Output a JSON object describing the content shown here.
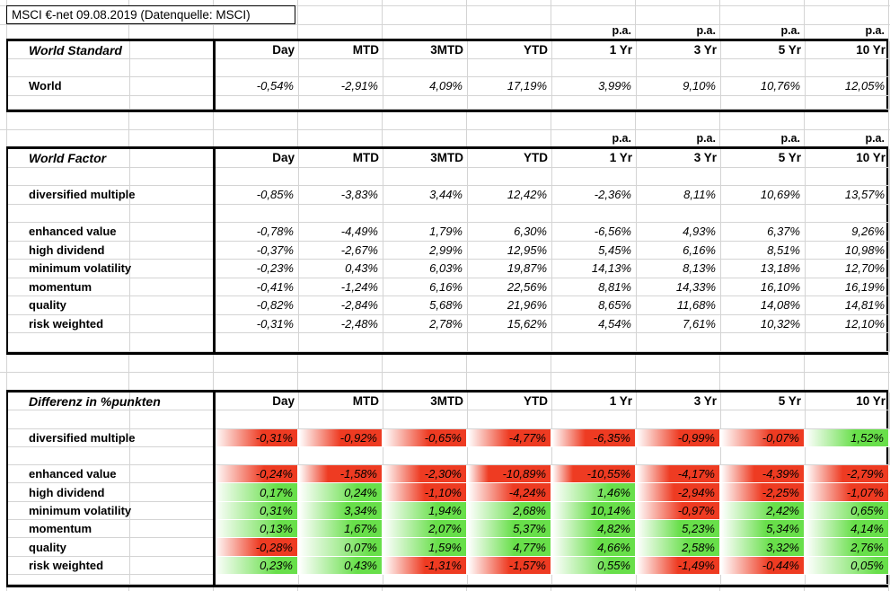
{
  "title": "MSCI €-net 09.08.2019 (Datenquelle: MSCI)",
  "pa_label": "p.a.",
  "columns": [
    "Day",
    "MTD",
    "3MTD",
    "YTD",
    "1 Yr",
    "3 Yr",
    "5 Yr",
    "10 Yr"
  ],
  "pa_columns": [
    "1 Yr",
    "3 Yr",
    "5 Yr",
    "10 Yr"
  ],
  "colors": {
    "red": "#ee3b22",
    "green": "#68df4a",
    "gridline": "#d4d4d4"
  },
  "world_standard": {
    "title": "World Standard",
    "rows": [
      {
        "label": "World",
        "values": [
          "-0,54%",
          "-2,91%",
          "4,09%",
          "17,19%",
          "3,99%",
          "9,10%",
          "10,76%",
          "12,05%"
        ]
      }
    ]
  },
  "world_factor": {
    "title": "World Factor",
    "rows": [
      {
        "label": "diversified multiple",
        "values": [
          "-0,85%",
          "-3,83%",
          "3,44%",
          "12,42%",
          "-2,36%",
          "8,11%",
          "10,69%",
          "13,57%"
        ]
      },
      {
        "label": "enhanced value",
        "values": [
          "-0,78%",
          "-4,49%",
          "1,79%",
          "6,30%",
          "-6,56%",
          "4,93%",
          "6,37%",
          "9,26%"
        ]
      },
      {
        "label": "high dividend",
        "values": [
          "-0,37%",
          "-2,67%",
          "2,99%",
          "12,95%",
          "5,45%",
          "6,16%",
          "8,51%",
          "10,98%"
        ]
      },
      {
        "label": "minimum volatility",
        "values": [
          "-0,23%",
          "0,43%",
          "6,03%",
          "19,87%",
          "14,13%",
          "8,13%",
          "13,18%",
          "12,70%"
        ]
      },
      {
        "label": "momentum",
        "values": [
          "-0,41%",
          "-1,24%",
          "6,16%",
          "22,56%",
          "8,81%",
          "14,33%",
          "16,10%",
          "16,19%"
        ]
      },
      {
        "label": "quality",
        "values": [
          "-0,82%",
          "-2,84%",
          "5,68%",
          "21,96%",
          "8,65%",
          "11,68%",
          "14,08%",
          "14,81%"
        ]
      },
      {
        "label": "risk weighted",
        "values": [
          "-0,31%",
          "-2,48%",
          "2,78%",
          "15,62%",
          "4,54%",
          "7,61%",
          "10,32%",
          "12,10%"
        ]
      }
    ]
  },
  "differenz": {
    "title": "Differenz in %punkten",
    "rows": [
      {
        "label": "diversified multiple",
        "cells": [
          {
            "v": "-0,31%",
            "c": "red",
            "s": 58
          },
          {
            "v": "-0,92%",
            "c": "red",
            "s": 50
          },
          {
            "v": "-0,65%",
            "c": "red",
            "s": 55
          },
          {
            "v": "-4,77%",
            "c": "red",
            "s": 50
          },
          {
            "v": "-6,35%",
            "c": "red",
            "s": 40
          },
          {
            "v": "-0,99%",
            "c": "red",
            "s": 52
          },
          {
            "v": "-0,07%",
            "c": "red",
            "s": 60
          },
          {
            "v": "1,52%",
            "c": "green",
            "s": 60
          }
        ]
      },
      {
        "label": "enhanced value",
        "cells": [
          {
            "v": "-0,24%",
            "c": "red",
            "s": 60
          },
          {
            "v": "-1,58%",
            "c": "red",
            "s": 35
          },
          {
            "v": "-2,30%",
            "c": "red",
            "s": 45
          },
          {
            "v": "-10,89%",
            "c": "red",
            "s": 25
          },
          {
            "v": "-10,55%",
            "c": "red",
            "s": 25
          },
          {
            "v": "-4,17%",
            "c": "red",
            "s": 40
          },
          {
            "v": "-4,39%",
            "c": "red",
            "s": 40
          },
          {
            "v": "-2,79%",
            "c": "red",
            "s": 45
          }
        ]
      },
      {
        "label": "high dividend",
        "cells": [
          {
            "v": "0,17%",
            "c": "green",
            "s": 75
          },
          {
            "v": "0,24%",
            "c": "green",
            "s": 70
          },
          {
            "v": "-1,10%",
            "c": "red",
            "s": 50
          },
          {
            "v": "-4,24%",
            "c": "red",
            "s": 55
          },
          {
            "v": "1,46%",
            "c": "green",
            "s": 70
          },
          {
            "v": "-2,94%",
            "c": "red",
            "s": 45
          },
          {
            "v": "-2,25%",
            "c": "red",
            "s": 50
          },
          {
            "v": "-1,07%",
            "c": "red",
            "s": 55
          }
        ]
      },
      {
        "label": "minimum volatility",
        "cells": [
          {
            "v": "0,31%",
            "c": "green",
            "s": 75
          },
          {
            "v": "3,34%",
            "c": "green",
            "s": 58
          },
          {
            "v": "1,94%",
            "c": "green",
            "s": 65
          },
          {
            "v": "2,68%",
            "c": "green",
            "s": 65
          },
          {
            "v": "10,14%",
            "c": "green",
            "s": 50
          },
          {
            "v": "-0,97%",
            "c": "red",
            "s": 55
          },
          {
            "v": "2,42%",
            "c": "green",
            "s": 63
          },
          {
            "v": "0,65%",
            "c": "green",
            "s": 72
          }
        ]
      },
      {
        "label": "momentum",
        "cells": [
          {
            "v": "0,13%",
            "c": "green",
            "s": 80
          },
          {
            "v": "1,67%",
            "c": "green",
            "s": 65
          },
          {
            "v": "2,07%",
            "c": "green",
            "s": 63
          },
          {
            "v": "5,37%",
            "c": "green",
            "s": 55
          },
          {
            "v": "4,82%",
            "c": "green",
            "s": 56
          },
          {
            "v": "5,23%",
            "c": "green",
            "s": 52
          },
          {
            "v": "5,34%",
            "c": "green",
            "s": 54
          },
          {
            "v": "4,14%",
            "c": "green",
            "s": 58
          }
        ]
      },
      {
        "label": "quality",
        "cells": [
          {
            "v": "-0,28%",
            "c": "red",
            "s": 55
          },
          {
            "v": "0,07%",
            "c": "green",
            "s": 86
          },
          {
            "v": "1,59%",
            "c": "green",
            "s": 66
          },
          {
            "v": "4,77%",
            "c": "green",
            "s": 56
          },
          {
            "v": "4,66%",
            "c": "green",
            "s": 56
          },
          {
            "v": "2,58%",
            "c": "green",
            "s": 62
          },
          {
            "v": "3,32%",
            "c": "green",
            "s": 60
          },
          {
            "v": "2,76%",
            "c": "green",
            "s": 62
          }
        ]
      },
      {
        "label": "risk weighted",
        "cells": [
          {
            "v": "0,23%",
            "c": "green",
            "s": 74
          },
          {
            "v": "0,43%",
            "c": "green",
            "s": 70
          },
          {
            "v": "-1,31%",
            "c": "red",
            "s": 50
          },
          {
            "v": "-1,57%",
            "c": "red",
            "s": 50
          },
          {
            "v": "0,55%",
            "c": "green",
            "s": 70
          },
          {
            "v": "-1,49%",
            "c": "red",
            "s": 50
          },
          {
            "v": "-0,44%",
            "c": "red",
            "s": 58
          },
          {
            "v": "0,05%",
            "c": "green",
            "s": 86
          }
        ]
      }
    ]
  }
}
